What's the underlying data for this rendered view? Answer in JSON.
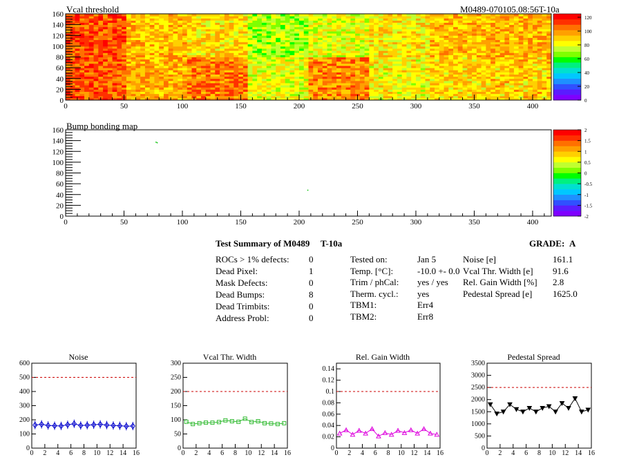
{
  "header": {
    "threshold_title": "Vcal threshold",
    "run_id": "M0489-070105.08:56T-10a",
    "bump_title": "Bump bonding map"
  },
  "summary": {
    "title": "Test Summary of M0489",
    "temp_code": "T-10a",
    "grade_label": "GRADE:",
    "grade": "A",
    "defects": [
      {
        "label": "ROCs > 1% defects:",
        "value": "0"
      },
      {
        "label": "Dead Pixel:",
        "value": "1"
      },
      {
        "label": "Mask Defects:",
        "value": "0"
      },
      {
        "label": "Dead Bumps:",
        "value": "8"
      },
      {
        "label": "Dead Trimbits:",
        "value": "0"
      },
      {
        "label": "Address Probl:",
        "value": "0"
      }
    ],
    "conditions": [
      {
        "label": "Tested on:",
        "value": "Jan 5"
      },
      {
        "label": "Temp. [°C]:",
        "value": "-10.0 +- 0.0"
      },
      {
        "label": "Trim / phCal:",
        "value": "yes / yes"
      },
      {
        "label": "Therm. cycl.:",
        "value": "yes"
      },
      {
        "label": "TBM1:",
        "value": "Err4"
      },
      {
        "label": "TBM2:",
        "value": "Err8"
      }
    ],
    "results": [
      {
        "label": "Noise [e]",
        "value": "161.1"
      },
      {
        "label": "Vcal Thr. Width [e]",
        "value": "91.6"
      },
      {
        "label": "Rel. Gain Width [%]",
        "value": "2.8"
      },
      {
        "label": "Pedestal Spread [e]",
        "value": "1625.0"
      }
    ]
  },
  "chart_data": [
    {
      "type": "heatmap",
      "title": "Vcal threshold",
      "xlim": [
        0,
        416
      ],
      "ylim": [
        0,
        160
      ],
      "xticks": [
        0,
        50,
        100,
        150,
        200,
        250,
        300,
        350,
        400
      ],
      "yticks": [
        0,
        20,
        40,
        60,
        80,
        100,
        120,
        140,
        160
      ],
      "z_ticks": [
        0,
        20,
        40,
        60,
        80,
        100,
        120
      ],
      "zlim": [
        0,
        125
      ],
      "roc_mean_top": [
        110,
        92,
        88,
        72,
        78,
        85,
        93,
        96
      ],
      "roc_mean_bottom": [
        108,
        95,
        104,
        80,
        100,
        82,
        88,
        90
      ]
    },
    {
      "type": "heatmap",
      "title": "Bump bonding map",
      "xlim": [
        0,
        416
      ],
      "ylim": [
        0,
        160
      ],
      "xticks": [
        0,
        50,
        100,
        150,
        200,
        250,
        300,
        350,
        400
      ],
      "yticks": [
        0,
        20,
        40,
        60,
        80,
        100,
        120,
        140,
        160
      ],
      "z_ticks": [
        -2,
        -1.5,
        -1,
        -0.5,
        0,
        0.5,
        1,
        1.5,
        2
      ],
      "zlim": [
        -2,
        2
      ],
      "points": [
        [
          77,
          138
        ],
        [
          78,
          137
        ],
        [
          207,
          49
        ]
      ]
    },
    {
      "type": "line",
      "title": "Noise",
      "x": [
        0,
        1,
        2,
        3,
        4,
        5,
        6,
        7,
        8,
        9,
        10,
        11,
        12,
        13,
        14,
        15
      ],
      "values": [
        163,
        168,
        160,
        158,
        157,
        165,
        172,
        160,
        162,
        165,
        168,
        163,
        160,
        158,
        155,
        156
      ],
      "threshold": 500,
      "xlim": [
        0,
        16
      ],
      "ylim": [
        0,
        600
      ],
      "xticks": [
        0,
        2,
        4,
        6,
        8,
        10,
        12,
        14,
        16
      ],
      "yticks": [
        0,
        100,
        200,
        300,
        400,
        500,
        600
      ],
      "color": "#0000cc",
      "marker": "diamond"
    },
    {
      "type": "line",
      "title": "Vcal Thr. Width",
      "x": [
        0,
        1,
        2,
        3,
        4,
        5,
        6,
        7,
        8,
        9,
        10,
        11,
        12,
        13,
        14,
        15
      ],
      "values": [
        93,
        85,
        88,
        90,
        90,
        92,
        98,
        95,
        93,
        104,
        92,
        95,
        88,
        87,
        85,
        88
      ],
      "threshold": 200,
      "xlim": [
        0,
        16
      ],
      "ylim": [
        0,
        300
      ],
      "xticks": [
        0,
        2,
        4,
        6,
        8,
        10,
        12,
        14,
        16
      ],
      "yticks": [
        0,
        50,
        100,
        150,
        200,
        250,
        300
      ],
      "color": "#33bb33",
      "marker": "square"
    },
    {
      "type": "line",
      "title": "Rel. Gain Width",
      "x": [
        0,
        1,
        2,
        3,
        4,
        5,
        6,
        7,
        8,
        9,
        10,
        11,
        12,
        13,
        14,
        15
      ],
      "values": [
        0.026,
        0.032,
        0.024,
        0.031,
        0.026,
        0.034,
        0.021,
        0.027,
        0.024,
        0.031,
        0.027,
        0.032,
        0.026,
        0.034,
        0.026,
        0.024
      ],
      "threshold": 0.1,
      "xlim": [
        0,
        16
      ],
      "ylim": [
        0,
        0.15
      ],
      "xticks": [
        0,
        2,
        4,
        6,
        8,
        10,
        12,
        14,
        16
      ],
      "yticks": [
        0,
        0.02,
        0.04,
        0.06,
        0.08,
        0.1,
        0.12,
        0.14
      ],
      "ytick_labels": [
        "0",
        "0.02",
        "0.04",
        "0.06",
        "0.08",
        "0.1",
        "0.12",
        "0.14"
      ],
      "color": "#dd00dd",
      "marker": "triangle-up"
    },
    {
      "type": "line",
      "title": "Pedestal Spread",
      "x": [
        0,
        1,
        2,
        3,
        4,
        5,
        6,
        7,
        8,
        9,
        10,
        11,
        12,
        13,
        14,
        15
      ],
      "values": [
        1800,
        1420,
        1500,
        1800,
        1600,
        1500,
        1650,
        1500,
        1650,
        1720,
        1500,
        1850,
        1650,
        2050,
        1500,
        1580
      ],
      "threshold": 2500,
      "xlim": [
        0,
        16
      ],
      "ylim": [
        0,
        3500
      ],
      "xticks": [
        0,
        2,
        4,
        6,
        8,
        10,
        12,
        14,
        16
      ],
      "yticks": [
        0,
        500,
        1000,
        1500,
        2000,
        2500,
        3000,
        3500
      ],
      "color": "#000000",
      "marker": "triangle-down"
    }
  ]
}
